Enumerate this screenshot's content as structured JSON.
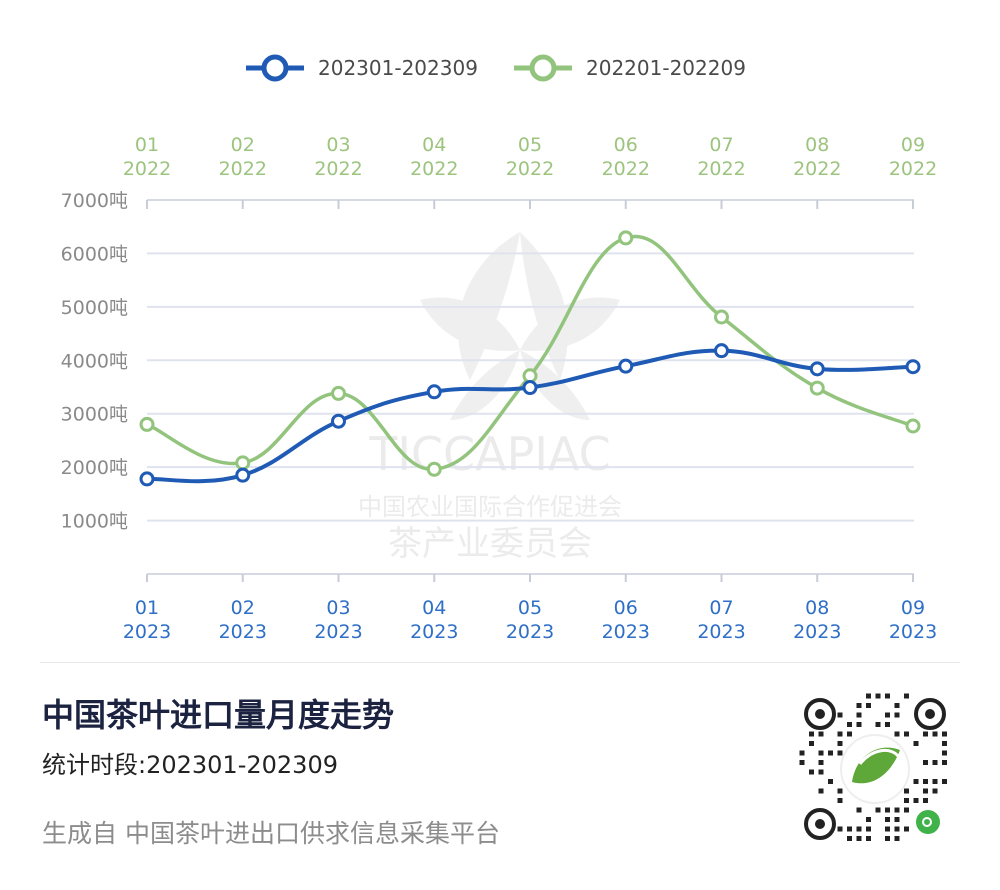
{
  "chart_data": {
    "type": "line",
    "x_top_labels": [
      [
        "01",
        "2022"
      ],
      [
        "02",
        "2022"
      ],
      [
        "03",
        "2022"
      ],
      [
        "04",
        "2022"
      ],
      [
        "05",
        "2022"
      ],
      [
        "06",
        "2022"
      ],
      [
        "07",
        "2022"
      ],
      [
        "08",
        "2022"
      ],
      [
        "09",
        "2022"
      ]
    ],
    "x_bottom_labels": [
      [
        "01",
        "2023"
      ],
      [
        "02",
        "2023"
      ],
      [
        "03",
        "2023"
      ],
      [
        "04",
        "2023"
      ],
      [
        "05",
        "2023"
      ],
      [
        "06",
        "2023"
      ],
      [
        "07",
        "2023"
      ],
      [
        "08",
        "2023"
      ],
      [
        "09",
        "2023"
      ]
    ],
    "y_ticks": [
      "1000吨",
      "2000吨",
      "3000吨",
      "4000吨",
      "5000吨",
      "6000吨",
      "7000吨"
    ],
    "ylim": [
      0,
      7000
    ],
    "grid": true,
    "legend_position": "top-center",
    "series": [
      {
        "name": "202301-202309",
        "color": "#1f5bb5",
        "axis": "bottom",
        "values": [
          1780,
          1850,
          2860,
          3410,
          3490,
          3890,
          4180,
          3840,
          3880
        ]
      },
      {
        "name": "202201-202209",
        "color": "#93c47d",
        "axis": "top",
        "values": [
          2800,
          2080,
          3380,
          1960,
          3710,
          6290,
          4810,
          3480,
          2770
        ]
      }
    ]
  },
  "watermark": {
    "org_en": "TICCAPIAC",
    "org_cn": "中国农业国际合作促进会",
    "org_cn2": "茶产业委员会"
  },
  "footer": {
    "title": "中国茶叶进口量月度走势",
    "period": "统计时段:202301-202309",
    "source": "生成自 中国茶叶进出口供求信息采集平台"
  },
  "qr": {
    "icon": "qr-code-icon"
  }
}
